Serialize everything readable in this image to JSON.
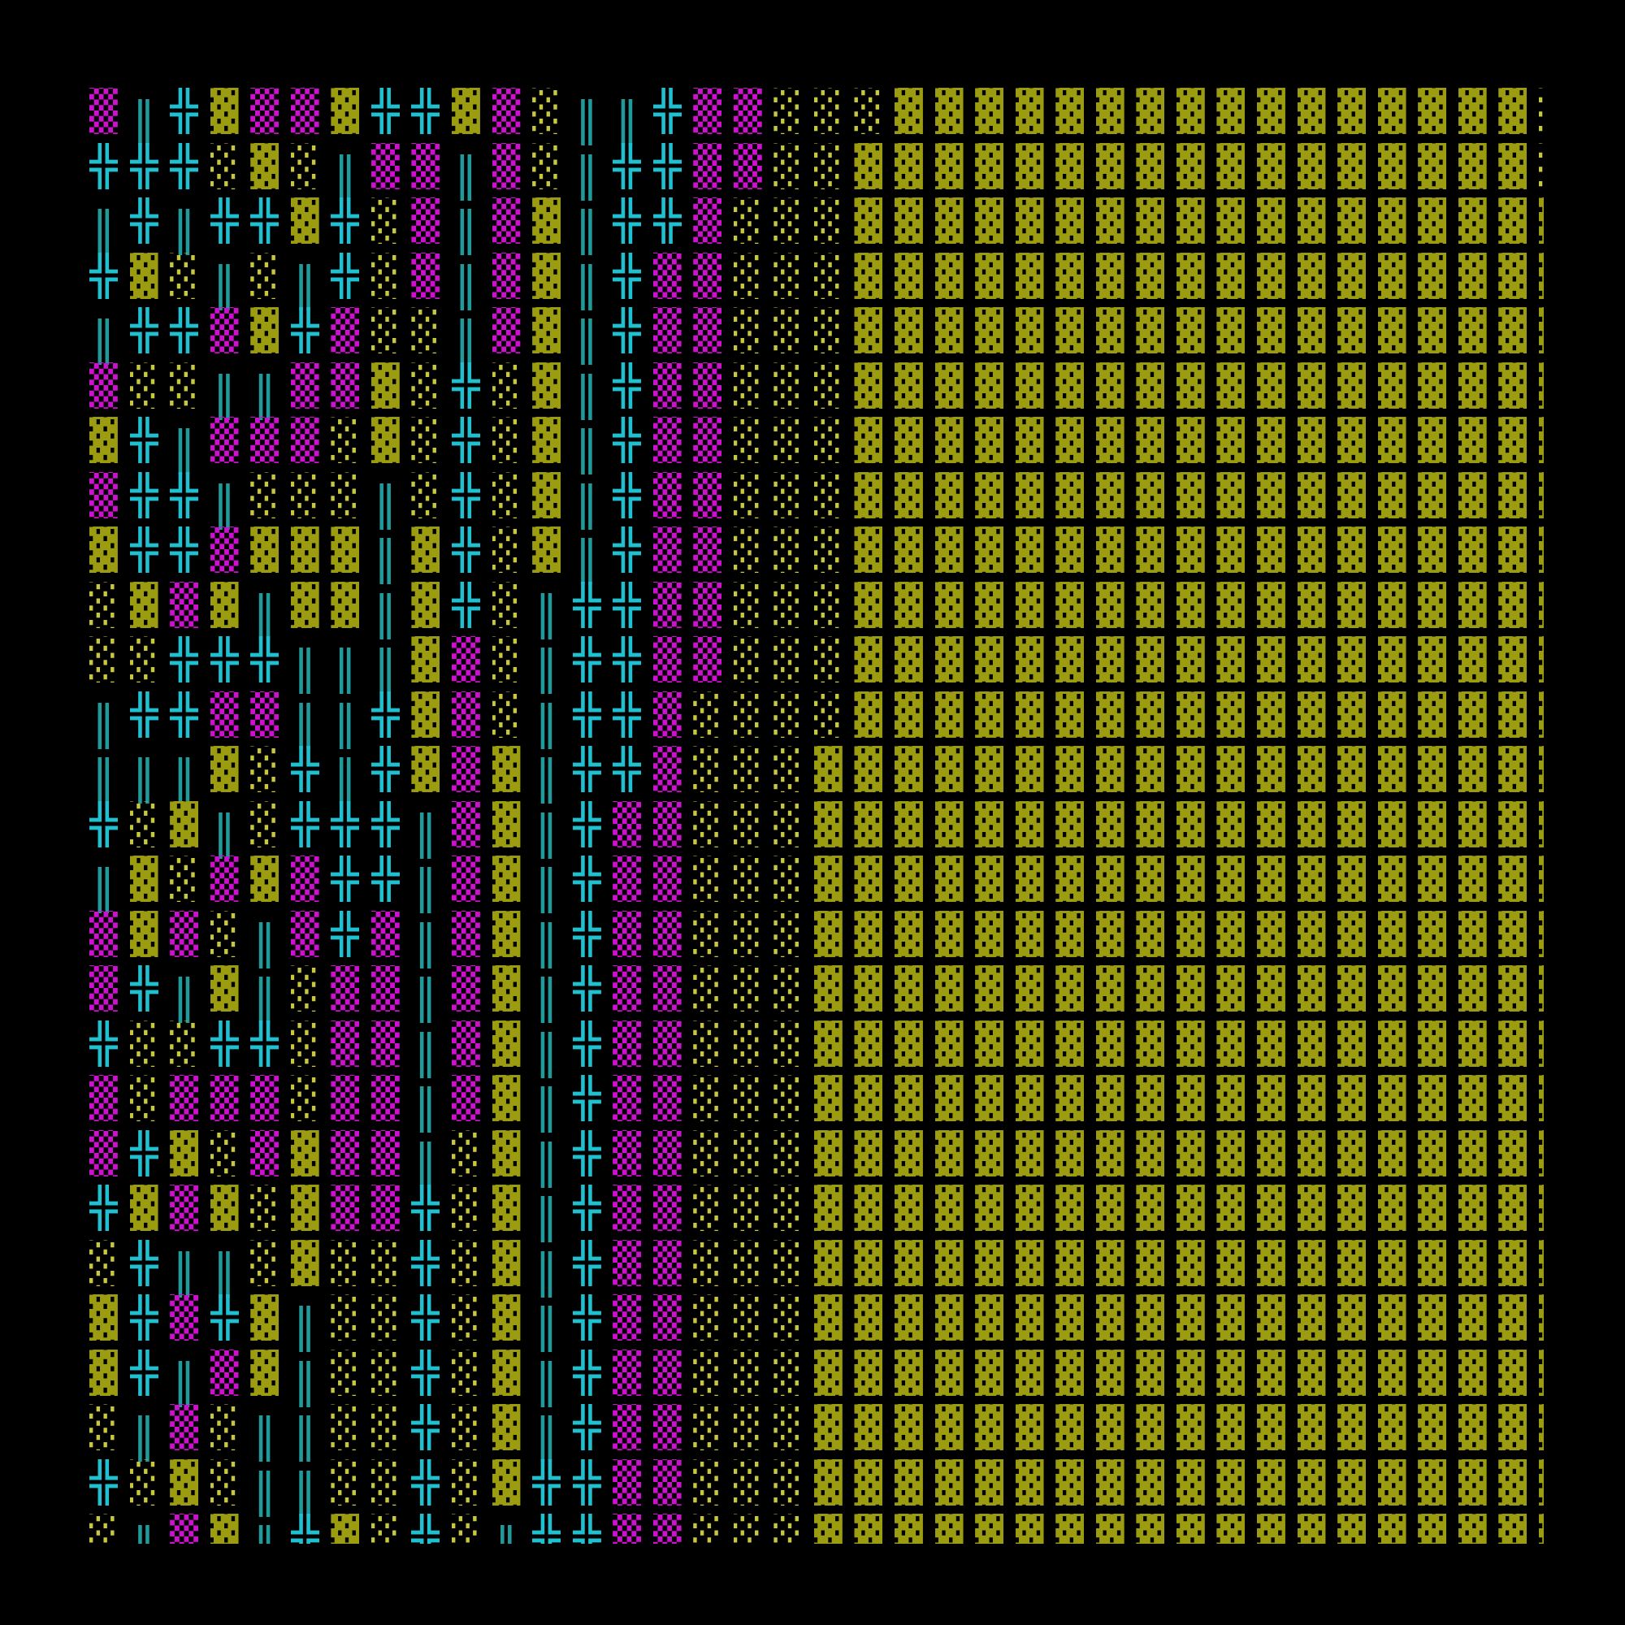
{
  "glyph_colors": {
    "▒": "#d010d0",
    "░": "#c8c840",
    "▓": "#9c9c10",
    "╬": "#20c0d0",
    "║": "#209a9a"
  },
  "background": "#000000",
  "rows": [
    "▒║╬▓▒▒▓╬╬▓▒░║║╬▒▒░░░▓▓▓▓▓▓▓▓▓▓▓▓▓▓▓▓░",
    "╬╬╬░▓░║▒▒║▒░║╬╬▒▒░░▓▓▓▓▓▓▓▓▓▓▓▓▓▓▓▓▓░",
    "║╬║╬╬▓╬░▒║▒▓║╬╬▒░░░▓▓▓▓▓▓▓▓▓▓▓▓▓▓▓▓▓▓",
    "╬▓░║░║╬░▒║▒▓║╬▒▒░░░▓▓▓▓▓▓▓▓▓▓▓▓▓▓▓▓▓▓",
    "║╬╬▒▓╬▒░░║▒▓║╬▒▒░░░▓▓▓▓▓▓▓▓▓▓▓▓▓▓▓▓▓▓",
    "▒░░║║▒▒▓░╬░▓║╬▒▒░░░▓▓▓▓▓▓▓▓▓▓▓▓▓▓▓▓▓▓",
    "▓╬║▒▒▒░▓░╬░▓║╬▒▒░░░▓▓▓▓▓▓▓▓▓▓▓▓▓▓▓▓▓▓",
    "▒╬╬║░░░║░╬░▓║╬▒▒░░░▓▓▓▓▓▓▓▓▓▓▓▓▓▓▓▓▓▓",
    "▓╬╬▒▓▓▓║▓╬░▓║╬▒▒░░░▓▓▓▓▓▓▓▓▓▓▓▓▓▓▓▓▓▓",
    "░▓▒▓║▓▓║▓╬░║╬╬▒▒░░░▓▓▓▓▓▓▓▓▓▓▓▓▓▓▓▓▓▓",
    "░░╬╬╬║║║▓▒░║╬╬▒▒░░░▓▓▓▓▓▓▓▓▓▓▓▓▓▓▓▓▓▓",
    "║╬╬▒▒║║╬▓▒░║╬╬▒░░░░▓▓▓▓▓▓▓▓▓▓▓▓▓▓▓▓▓▓",
    "║║║▓░╬║╬▓▒▓║╬╬▒░░░▓▓▓▓▓▓▓▓▓▓▓▓▓▓▓▓▓▓▓",
    "╬░▓║░╬╬╬║▒▓║╬▒▒░░░▓▓▓▓▓▓▓▓▓▓▓▓▓▓▓▓▓▓▓",
    "║▓░▒▓▒╬╬║▒▓║╬▒▒░░░▓▓▓▓▓▓▓▓▓▓▓▓▓▓▓▓▓▓▓",
    "▒▓▒░║▒╬▒║▒▓║╬▒▒░░░▓▓▓▓▓▓▓▓▓▓▓▓▓▓▓▓▓▓▓",
    "▒╬║▓║░▒▒║▒▓║╬▒▒░░░▓▓▓▓▓▓▓▓▓▓▓▓▓▓▓▓▓▓▓",
    "╬░░╬╬░▒▒║▒▓║╬▒▒░░░▓▓▓▓▓▓▓▓▓▓▓▓▓▓▓▓▓▓▓",
    "▒░▒▒▒░▒▒║▒▓║╬▒▒░░░▓▓▓▓▓▓▓▓▓▓▓▓▓▓▓▓▓▓▓",
    "▒╬▓░▒▓▒▒║░▓║╬▒▒░░░▓▓▓▓▓▓▓▓▓▓▓▓▓▓▓▓▓▓▓",
    "╬▓▒▓░▓▒▒╬░▓║╬▒▒░░░▓▓▓▓▓▓▓▓▓▓▓▓▓▓▓▓▓▓▓",
    "░╬║║░▓░░╬░▓║╬▒▒░░░▓▓▓▓▓▓▓▓▓▓▓▓▓▓▓▓▓▓▓",
    "▓╬▒╬▓║░░╬░▓║╬▒▒░░░▓▓▓▓▓▓▓▓▓▓▓▓▓▓▓▓▓▓▓",
    "▓╬║▒▓║░░╬░▓║╬▒▒░░░▓▓▓▓▓▓▓▓▓▓▓▓▓▓▓▓▓▓▓",
    "░║▒░║║░░╬░▓║╬▒▒░░░▓▓▓▓▓▓▓▓▓▓▓▓▓▓▓▓▓▓▓",
    "╬░▓░║║░░╬░▓╬╬▒▒░░░▓▓▓▓▓▓▓▓▓▓▓▓▓▓▓▓▓▓▓",
    "░║▒▓║╬▓░╬░║╬╬▒▒░░░▓▓▓▓▓▓▓▓▓▓▓▓▓▓▓▓▓▓▓"
  ]
}
